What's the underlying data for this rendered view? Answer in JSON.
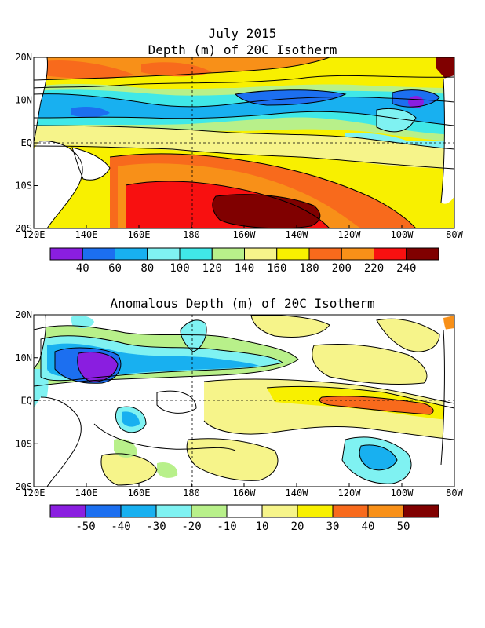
{
  "chart_data": [
    {
      "type": "heatmap",
      "title": "July 2015",
      "subtitle": "Depth (m) of 20C Isotherm",
      "x_ticks": [
        "120E",
        "140E",
        "160E",
        "180",
        "160W",
        "140W",
        "120W",
        "100W",
        "80W"
      ],
      "y_ticks": [
        "20N",
        "10N",
        "EQ",
        "10S",
        "20S"
      ],
      "colorbar": {
        "labels": [
          "40",
          "60",
          "80",
          "100",
          "120",
          "140",
          "160",
          "180",
          "200",
          "220",
          "240"
        ],
        "colors": [
          "#8a1ee0",
          "#1c6ff0",
          "#18b0f0",
          "#7ff2f2",
          "#40e8e8",
          "#b8f08a",
          "#f6f48a",
          "#f8f000",
          "#f86a1c",
          "#f89018",
          "#f81010",
          "#800000"
        ]
      }
    },
    {
      "type": "heatmap",
      "title": "Anomalous Depth (m) of 20C Isotherm",
      "x_ticks": [
        "120E",
        "140E",
        "160E",
        "180",
        "160W",
        "140W",
        "120W",
        "100W",
        "80W"
      ],
      "y_ticks": [
        "20N",
        "10N",
        "EQ",
        "10S",
        "20S"
      ],
      "colorbar": {
        "labels": [
          "-50",
          "-40",
          "-30",
          "-20",
          "-10",
          "10",
          "20",
          "30",
          "40",
          "50"
        ],
        "colors": [
          "#8a1ee0",
          "#1c6ff0",
          "#18b0f0",
          "#7ff2f2",
          "#b8f08a",
          "#ffffff",
          "#f6f48a",
          "#f8f000",
          "#f86a1c",
          "#f89018",
          "#800000"
        ]
      }
    }
  ]
}
